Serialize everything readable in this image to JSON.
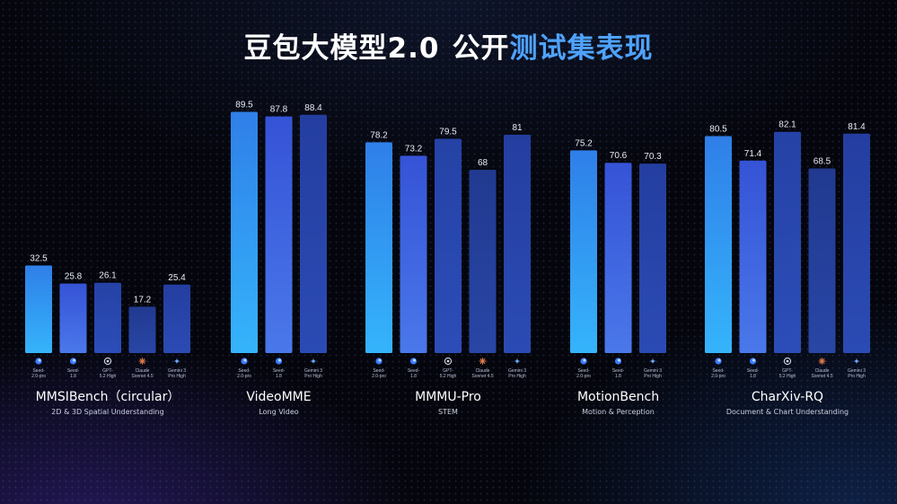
{
  "title": {
    "part1": "豆包大模型2.0",
    "part2": "公开",
    "part3": "测试集表现"
  },
  "colors": {
    "seed2": "#2b8cf0",
    "seed18": "#3f65e0",
    "gpt": "#2a4bb0",
    "claude": "#26409a",
    "gemini": "#2a4ab0",
    "accent_title": "#4fa3ff"
  },
  "chart_data": {
    "type": "bar",
    "models": [
      {
        "name": "Seed-2.0-pro",
        "label_lines": [
          "Seed-",
          "2.0-pro"
        ],
        "icon": "seed-icon"
      },
      {
        "name": "Seed-1.8",
        "label_lines": [
          "Seed-",
          "1.8"
        ],
        "icon": "seed-icon"
      },
      {
        "name": "GPT-5.2 High",
        "label_lines": [
          "GPT-",
          "5.2 High"
        ],
        "icon": "openai-icon"
      },
      {
        "name": "Claude Sonnet 4.5",
        "label_lines": [
          "Claude",
          "Sonnet 4.5"
        ],
        "icon": "claude-icon"
      },
      {
        "name": "Gemini 3 Pro High",
        "label_lines": [
          "Gemini 3",
          "Pro High"
        ],
        "icon": "gemini-icon"
      }
    ],
    "groups": [
      {
        "name": "MMSIBench（circular）",
        "subtitle": "2D & 3D Spatial Understanding",
        "model_indices": [
          0,
          1,
          2,
          3,
          4
        ],
        "values": [
          32.5,
          25.8,
          26.1,
          17.2,
          25.4
        ]
      },
      {
        "name": "VideoMME",
        "subtitle": "Long Video",
        "model_indices": [
          0,
          1,
          4
        ],
        "values": [
          89.5,
          87.8,
          88.4
        ]
      },
      {
        "name": "MMMU-Pro",
        "subtitle": "STEM",
        "model_indices": [
          0,
          1,
          2,
          3,
          4
        ],
        "values": [
          78.2,
          73.2,
          79.5,
          68,
          81
        ]
      },
      {
        "name": "MotionBench",
        "subtitle": "Motion & Perception",
        "model_indices": [
          0,
          1,
          4
        ],
        "values": [
          75.2,
          70.6,
          70.3
        ]
      },
      {
        "name": "CharXiv-RQ",
        "subtitle": "Document & Chart Understanding",
        "model_indices": [
          0,
          1,
          2,
          3,
          4
        ],
        "values": [
          80.5,
          71.4,
          82.1,
          68.5,
          81.4
        ]
      }
    ]
  }
}
